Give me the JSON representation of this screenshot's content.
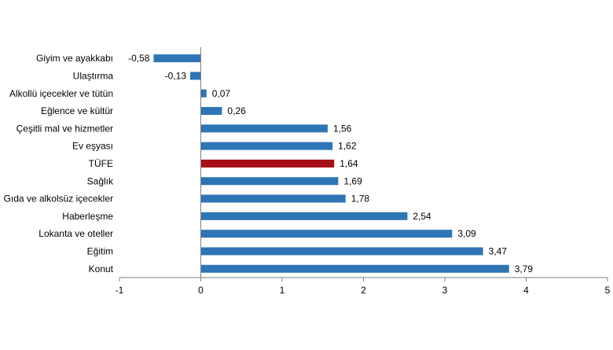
{
  "chart_data": {
    "type": "bar",
    "orientation": "horizontal",
    "categories": [
      "Giyim ve ayakkabı",
      "Ulaştırma",
      "Alkollü içecekler ve tütün",
      "Eğlence ve kültür",
      "Çeşitli mal ve hizmetler",
      "Ev eşyası",
      "TÜFE",
      "Sağlık",
      "Gıda ve alkolsüz içecekler",
      "Haberleşme",
      "Lokanta ve oteller",
      "Eğitim",
      "Konut"
    ],
    "values": [
      -0.58,
      -0.13,
      0.07,
      0.26,
      1.56,
      1.62,
      1.64,
      1.69,
      1.78,
      2.54,
      3.09,
      3.47,
      3.79
    ],
    "value_labels": [
      "-0,58",
      "-0,13",
      "0,07",
      "0,26",
      "1,56",
      "1,62",
      "1,64",
      "1,69",
      "1,78",
      "2,54",
      "3,09",
      "3,47",
      "3,79"
    ],
    "highlight_category": "TÜFE",
    "xlim": [
      -1,
      5
    ],
    "xticks": [
      -1,
      0,
      1,
      2,
      3,
      4,
      5
    ],
    "grid": false,
    "colors": {
      "bar": "#2e75b6",
      "highlight": "#a50f15",
      "axis": "#808080"
    }
  }
}
